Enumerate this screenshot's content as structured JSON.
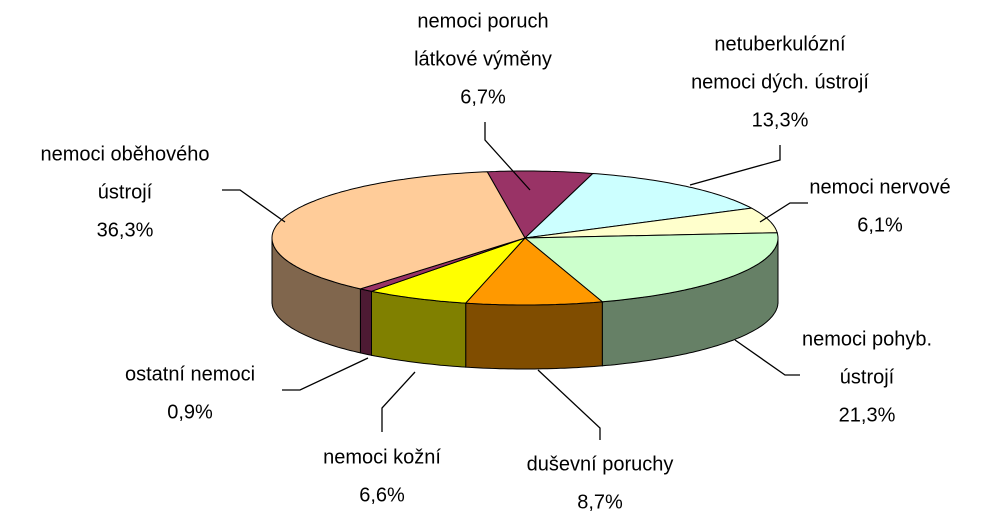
{
  "chart_data": {
    "type": "pie3d",
    "categories": [
      [
        "nemoci poruch",
        "látkové výměny"
      ],
      [
        "netuberkulózní",
        "nemoci dých. ústrojí"
      ],
      [
        "nemoci nervové"
      ],
      [
        "nemoci pohyb.",
        "ústrojí"
      ],
      [
        "duševní poruchy"
      ],
      [
        "nemoci kožní"
      ],
      [
        "ostatní nemoci"
      ],
      [
        "nemoci oběhového",
        "ústrojí"
      ]
    ],
    "values": [
      6.7,
      13.3,
      6.1,
      21.3,
      8.7,
      6.6,
      0.9,
      36.3
    ],
    "value_labels": [
      "6,7%",
      "13,3%",
      "6,1%",
      "21,3%",
      "8,7%",
      "6,6%",
      "0,9%",
      "36,3%"
    ],
    "colors": [
      "#993366",
      "#CCFFFF",
      "#FFFFCC",
      "#CCFFCC",
      "#FF9900",
      "#FFFF00",
      "#993366",
      "#FFCC99"
    ]
  }
}
